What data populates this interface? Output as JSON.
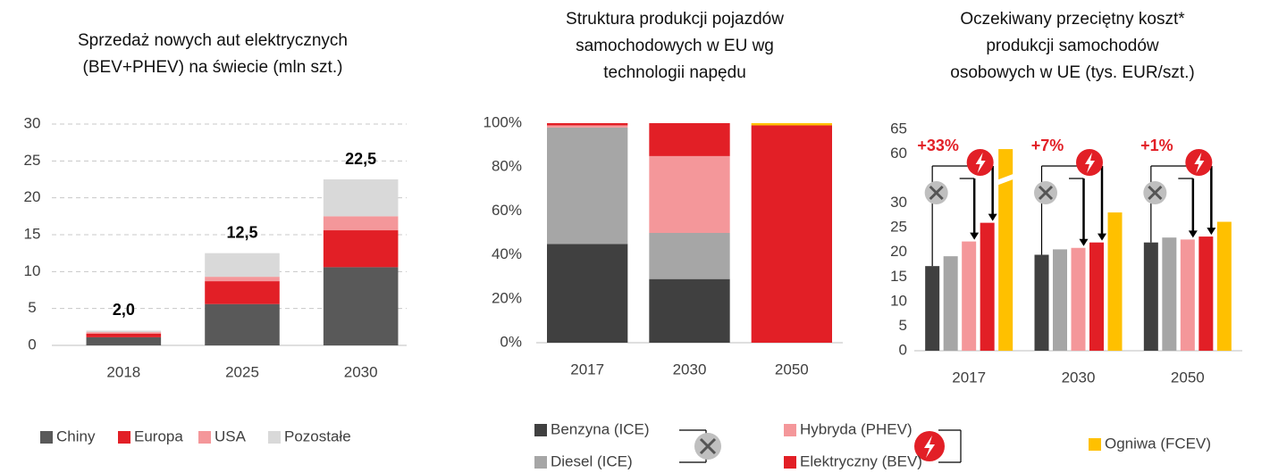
{
  "chart_data": [
    {
      "type": "bar",
      "stacked": true,
      "title": [
        "Sprzedaż nowych aut elektrycznych",
        "(BEV+PHEV) na świecie (mln szt.)"
      ],
      "categories": [
        "2018",
        "2025",
        "2030"
      ],
      "series": [
        {
          "name": "Chiny",
          "color": "#595959",
          "values": [
            1.1,
            5.6,
            10.6
          ]
        },
        {
          "name": "Europa",
          "color": "#e21f26",
          "values": [
            0.5,
            3.1,
            5.0
          ]
        },
        {
          "name": "USA",
          "color": "#f4979a",
          "values": [
            0.2,
            0.6,
            1.9
          ]
        },
        {
          "name": "Pozostałe",
          "color": "#d9d9d9",
          "values": [
            0.2,
            3.2,
            5.0
          ]
        }
      ],
      "totals": [
        2.0,
        12.5,
        22.5
      ],
      "total_labels": [
        "2,0",
        "12,5",
        "22,5"
      ],
      "ylim": [
        0,
        30
      ],
      "yticks": [
        0,
        5,
        10,
        15,
        20,
        25,
        30
      ],
      "grid": true
    },
    {
      "type": "bar",
      "stacked": true,
      "title": [
        "Struktura produkcji pojazdów",
        "samochodowych w EU wg",
        "technologii napędu"
      ],
      "categories": [
        "2017",
        "2030",
        "2050"
      ],
      "series": [
        {
          "name": "Benzyna (ICE)",
          "color": "#404040",
          "values": [
            45,
            29,
            0
          ]
        },
        {
          "name": "Diesel (ICE)",
          "color": "#a6a6a6",
          "values": [
            53,
            21,
            0
          ]
        },
        {
          "name": "Hybryda (PHEV)",
          "color": "#f4979a",
          "values": [
            1,
            35,
            0
          ]
        },
        {
          "name": "Elektryczny (BEV)",
          "color": "#e21f26",
          "values": [
            1,
            15,
            99
          ]
        },
        {
          "name": "Ogniwa (FCEV)",
          "color": "#ffc000",
          "values": [
            0,
            0,
            1
          ]
        }
      ],
      "ylim": [
        0,
        100
      ],
      "yticks": [
        {
          "value": 0,
          "label": "0%"
        },
        {
          "value": 20,
          "label": "20%"
        },
        {
          "value": 40,
          "label": "40%"
        },
        {
          "value": 60,
          "label": "60%"
        },
        {
          "value": 80,
          "label": "80%"
        },
        {
          "value": 100,
          "label": "100%"
        }
      ],
      "grid": false
    },
    {
      "type": "bar",
      "stacked": false,
      "title": [
        "Oczekiwany przeciętny koszt*",
        "produkcji samochodów",
        "osobowych w UE (tys. EUR/szt.)"
      ],
      "categories": [
        "2017",
        "2030",
        "2050"
      ],
      "series": [
        {
          "color": "#404040",
          "values": [
            17.2,
            19.5,
            22.0
          ]
        },
        {
          "color": "#a6a6a6",
          "values": [
            19.2,
            20.6,
            23.0
          ]
        },
        {
          "color": "#f4979a",
          "values": [
            22.2,
            20.9,
            22.6
          ]
        },
        {
          "color": "#e21f26",
          "values": [
            26.0,
            22.0,
            23.2
          ]
        },
        {
          "color": "#ffc000",
          "values": [
            61,
            28.1,
            26.2
          ]
        }
      ],
      "annotations": [
        "+33%",
        "+7%",
        "+1%"
      ],
      "ylim": [
        0,
        65
      ],
      "axis_break": [
        30,
        60
      ],
      "yticks": [
        0,
        5,
        10,
        15,
        20,
        25,
        30,
        60,
        65
      ],
      "grid": false
    }
  ]
}
